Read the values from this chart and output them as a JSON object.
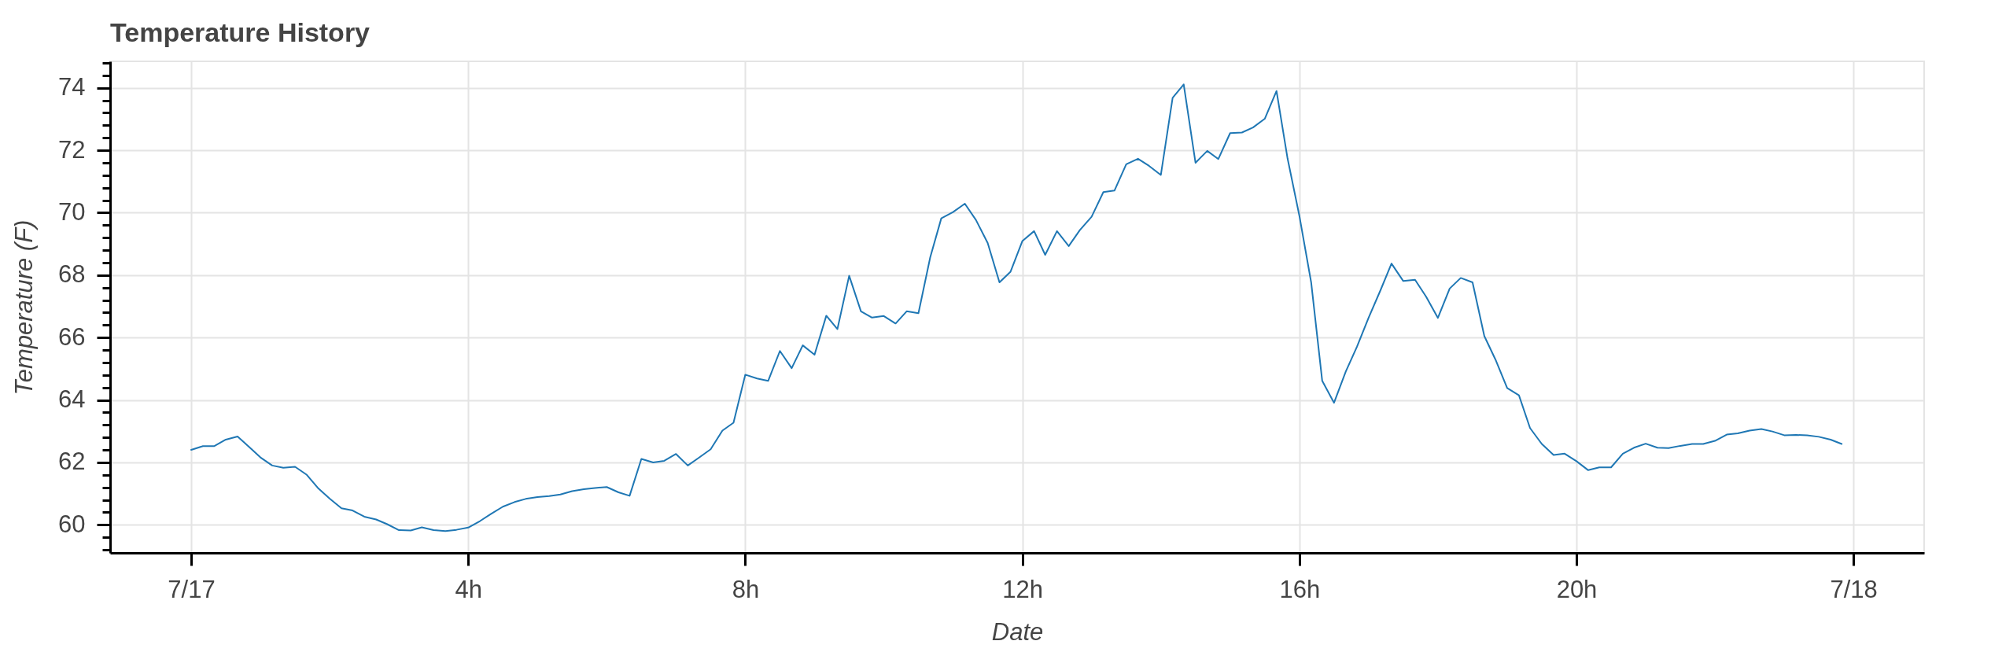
{
  "chart_data": {
    "type": "line",
    "title": "Temperature History",
    "xlabel": "Date",
    "ylabel": "Temperature (F)",
    "color": "#1f77b4",
    "line_style": "solid",
    "grid": true,
    "x": [
      0,
      0.17,
      0.33,
      0.5,
      0.67,
      0.83,
      1,
      1.17,
      1.33,
      1.5,
      1.67,
      1.83,
      2,
      2.17,
      2.33,
      2.5,
      2.67,
      2.83,
      3,
      3.17,
      3.33,
      3.5,
      3.67,
      3.83,
      4,
      4.17,
      4.33,
      4.5,
      4.67,
      4.83,
      5,
      5.17,
      5.33,
      5.5,
      5.67,
      5.83,
      6,
      6.17,
      6.33,
      6.5,
      6.67,
      6.83,
      7,
      7.17,
      7.33,
      7.5,
      7.67,
      7.83,
      8,
      8.17,
      8.33,
      8.5,
      8.67,
      8.83,
      9,
      9.17,
      9.33,
      9.5,
      9.67,
      9.83,
      10,
      10.17,
      10.33,
      10.5,
      10.67,
      10.83,
      11,
      11.17,
      11.33,
      11.5,
      11.67,
      11.83,
      12,
      12.17,
      12.33,
      12.5,
      12.67,
      12.83,
      13,
      13.17,
      13.33,
      13.5,
      13.67,
      13.83,
      14,
      14.17,
      14.33,
      14.5,
      14.67,
      14.83,
      15,
      15.17,
      15.33,
      15.5,
      15.67,
      15.83,
      16,
      16.17,
      16.33,
      16.5,
      16.67,
      16.83,
      17,
      17.17,
      17.33,
      17.5,
      17.67,
      17.83,
      18,
      18.17,
      18.33,
      18.5,
      18.67,
      18.83,
      19,
      19.17,
      19.33,
      19.5,
      19.67,
      19.83,
      20,
      20.17,
      20.33,
      20.5,
      20.67,
      20.83,
      21,
      21.17,
      21.33,
      21.5,
      21.67,
      21.83,
      22,
      22.17,
      22.33,
      22.5,
      22.67,
      22.83,
      23,
      23.17,
      23.33,
      23.5,
      23.67,
      23.83
    ],
    "values": [
      62.4,
      62.52,
      62.52,
      62.73,
      62.83,
      62.51,
      62.16,
      61.9,
      61.83,
      61.86,
      61.6,
      61.18,
      60.84,
      60.53,
      60.46,
      60.26,
      60.17,
      60.02,
      59.83,
      59.82,
      59.92,
      59.83,
      59.8,
      59.84,
      59.91,
      60.12,
      60.35,
      60.58,
      60.73,
      60.83,
      60.89,
      60.92,
      60.97,
      61.08,
      61.14,
      61.18,
      61.21,
      61.04,
      60.93,
      62.11,
      62.0,
      62.05,
      62.27,
      61.9,
      62.15,
      62.42,
      63.02,
      63.27,
      64.81,
      64.69,
      64.61,
      65.57,
      65.02,
      65.75,
      65.45,
      66.7,
      66.27,
      67.98,
      66.84,
      66.64,
      66.69,
      66.45,
      66.84,
      66.78,
      68.57,
      69.82,
      70.02,
      70.29,
      69.77,
      69.03,
      67.77,
      68.11,
      69.09,
      69.41,
      68.65,
      69.41,
      68.93,
      69.44,
      69.87,
      70.66,
      70.71,
      71.55,
      71.73,
      71.5,
      71.21,
      73.68,
      74.11,
      71.6,
      71.98,
      71.72,
      72.55,
      72.57,
      72.73,
      73.01,
      73.9,
      71.73,
      69.9,
      67.77,
      64.61,
      63.91,
      64.91,
      65.7,
      66.64,
      67.51,
      68.37,
      67.81,
      67.85,
      67.31,
      66.63,
      67.57,
      67.91,
      67.77,
      66.05,
      65.3,
      64.38,
      64.15,
      63.1,
      62.59,
      62.24,
      62.28,
      62.04,
      61.75,
      61.84,
      61.84,
      62.28,
      62.47,
      62.6,
      62.47,
      62.46,
      62.53,
      62.59,
      62.59,
      62.69,
      62.89,
      62.93,
      63.02,
      63.07,
      62.99,
      62.87,
      62.88,
      62.87,
      62.82,
      62.73,
      62.59
    ],
    "xlim": [
      -1.17,
      25.02
    ],
    "xticks": [
      {
        "value": 0,
        "label": "7/17"
      },
      {
        "value": 4,
        "label": "4h"
      },
      {
        "value": 8,
        "label": "8h"
      },
      {
        "value": 12,
        "label": "12h"
      },
      {
        "value": 16,
        "label": "16h"
      },
      {
        "value": 20,
        "label": "20h"
      },
      {
        "value": 24,
        "label": "7/18"
      }
    ],
    "ylim": [
      59.1,
      74.85
    ],
    "yticks": [
      {
        "value": 59.2,
        "label": null
      },
      {
        "value": 59.6,
        "label": null
      },
      60,
      {
        "value": 60.4,
        "label": null
      },
      {
        "value": 60.8,
        "label": null
      },
      {
        "value": 61.2,
        "label": null
      },
      {
        "value": 61.6,
        "label": null
      },
      62,
      {
        "value": 62.4,
        "label": null
      },
      {
        "value": 62.8,
        "label": null
      },
      {
        "value": 63.2,
        "label": null
      },
      {
        "value": 63.6,
        "label": null
      },
      64,
      {
        "value": 64.4,
        "label": null
      },
      {
        "value": 64.8,
        "label": null
      },
      {
        "value": 65.2,
        "label": null
      },
      {
        "value": 65.6,
        "label": null
      },
      66,
      {
        "value": 66.4,
        "label": null
      },
      {
        "value": 66.8,
        "label": null
      },
      {
        "value": 67.2,
        "label": null
      },
      {
        "value": 67.6,
        "label": null
      },
      68,
      {
        "value": 68.4,
        "label": null
      },
      {
        "value": 68.8,
        "label": null
      },
      {
        "value": 69.2,
        "label": null
      },
      {
        "value": 69.6,
        "label": null
      },
      70,
      {
        "value": 70.4,
        "label": null
      },
      {
        "value": 70.8,
        "label": null
      },
      {
        "value": 71.2,
        "label": null
      },
      {
        "value": 71.6,
        "label": null
      },
      72,
      {
        "value": 72.4,
        "label": null
      },
      {
        "value": 72.8,
        "label": null
      },
      {
        "value": 73.2,
        "label": null
      },
      {
        "value": 73.6,
        "label": null
      },
      74,
      {
        "value": 74.4,
        "label": null
      },
      {
        "value": 74.8,
        "label": null
      }
    ]
  }
}
